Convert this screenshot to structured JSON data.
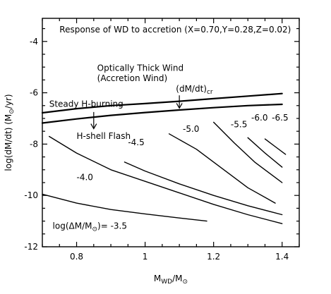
{
  "chart_data": {
    "type": "line",
    "title": "Response of WD to accretion (X=0.70,Y=0.28,Z=0.02)",
    "xlabel": "M_WD/M_⊙",
    "ylabel": "log(dM/dt) (M_⊙/yr)",
    "xlim": [
      0.7,
      1.45
    ],
    "ylim": [
      -12,
      -3.1
    ],
    "xticks": [
      0.8,
      1,
      1.2,
      1.4
    ],
    "xtick_labels": [
      "0.8",
      "1",
      "1.2",
      "1.4"
    ],
    "yticks": [
      -12,
      -10,
      -8,
      -6,
      -4
    ],
    "ytick_labels": [
      "-12",
      "-10",
      "-8",
      "-6",
      "-4"
    ],
    "grid": false,
    "legend": "none",
    "series": [
      {
        "id": "critical",
        "style": "thick",
        "x": [
          0.7,
          0.8,
          0.9,
          1.0,
          1.1,
          1.2,
          1.3,
          1.4
        ],
        "y": [
          -6.78,
          -6.62,
          -6.5,
          -6.42,
          -6.33,
          -6.23,
          -6.13,
          -6.03
        ]
      },
      {
        "id": "stable",
        "style": "thick",
        "x": [
          0.7,
          0.8,
          0.9,
          1.0,
          1.1,
          1.2,
          1.3,
          1.4
        ],
        "y": [
          -7.18,
          -7.02,
          -6.88,
          -6.77,
          -6.67,
          -6.58,
          -6.5,
          -6.45
        ]
      },
      {
        "id": "c-3.5",
        "style": "thin",
        "x": [
          0.7,
          0.8,
          0.9,
          1.0,
          1.1,
          1.18
        ],
        "y": [
          -9.95,
          -10.3,
          -10.55,
          -10.72,
          -10.88,
          -11.0
        ]
      },
      {
        "id": "c-4.0",
        "style": "thin",
        "x": [
          0.72,
          0.8,
          0.9,
          1.0,
          1.1,
          1.2,
          1.3,
          1.4
        ],
        "y": [
          -7.7,
          -8.35,
          -9.0,
          -9.45,
          -9.9,
          -10.35,
          -10.75,
          -11.1
        ]
      },
      {
        "id": "c-4.5",
        "style": "thin",
        "x": [
          0.94,
          1.0,
          1.1,
          1.2,
          1.3,
          1.4
        ],
        "y": [
          -8.7,
          -9.05,
          -9.55,
          -10.0,
          -10.4,
          -10.75
        ]
      },
      {
        "id": "c-5.0",
        "style": "thin",
        "x": [
          1.07,
          1.15,
          1.2,
          1.3,
          1.38
        ],
        "y": [
          -7.6,
          -8.2,
          -8.7,
          -9.7,
          -10.3
        ]
      },
      {
        "id": "c-5.5",
        "style": "thin",
        "x": [
          1.2,
          1.26,
          1.32,
          1.4
        ],
        "y": [
          -7.15,
          -7.95,
          -8.7,
          -9.5
        ]
      },
      {
        "id": "c-6.0",
        "style": "thin",
        "x": [
          1.3,
          1.35,
          1.4
        ],
        "y": [
          -7.75,
          -8.35,
          -8.9
        ]
      },
      {
        "id": "c-6.5",
        "style": "thin",
        "x": [
          1.35,
          1.38,
          1.41
        ],
        "y": [
          -7.8,
          -8.1,
          -8.4
        ]
      }
    ],
    "annotations": [
      {
        "id": "title",
        "text": "Response of WD to accretion (X=0.70,Y=0.28,Z=0.02)",
        "x": 0.75,
        "y": -3.65
      },
      {
        "id": "wind1",
        "text": "Optically Thick Wind",
        "x": 0.86,
        "y": -5.15
      },
      {
        "id": "wind2",
        "text": "(Accretion Wind)",
        "x": 0.86,
        "y": -5.55
      },
      {
        "id": "mdot_cr",
        "text": "(dM/dt)",
        "sub": "cr",
        "x": 1.09,
        "y": -5.95
      },
      {
        "id": "steady",
        "text": "Steady H-burning",
        "x": 0.72,
        "y": -6.55
      },
      {
        "id": "flash",
        "text": "H-shell Flash",
        "x": 0.8,
        "y": -7.8
      },
      {
        "id": "lbl-3.5",
        "text": "log(ΔM/M_⊙)= -3.5",
        "x": 0.73,
        "y": -11.3
      },
      {
        "id": "lbl-4.0",
        "text": "-4.0",
        "x": 0.8,
        "y": -9.4
      },
      {
        "id": "lbl-4.5",
        "text": "-4.5",
        "x": 0.95,
        "y": -8.05
      },
      {
        "id": "lbl-5.0",
        "text": "-5.0",
        "x": 1.11,
        "y": -7.52
      },
      {
        "id": "lbl-5.5",
        "text": "-5.5",
        "x": 1.25,
        "y": -7.35
      },
      {
        "id": "lbl-6.0",
        "text": "-6.0",
        "x": 1.31,
        "y": -7.08
      },
      {
        "id": "lbl-6.5",
        "text": "-6.5",
        "x": 1.37,
        "y": -7.08
      }
    ],
    "arrows": [
      {
        "id": "arrow-steady",
        "from": [
          0.85,
          -6.75
        ],
        "to": [
          0.85,
          -7.4
        ]
      },
      {
        "id": "arrow-mdot",
        "from": [
          1.1,
          -6.1
        ],
        "to": [
          1.1,
          -6.6
        ]
      }
    ]
  }
}
